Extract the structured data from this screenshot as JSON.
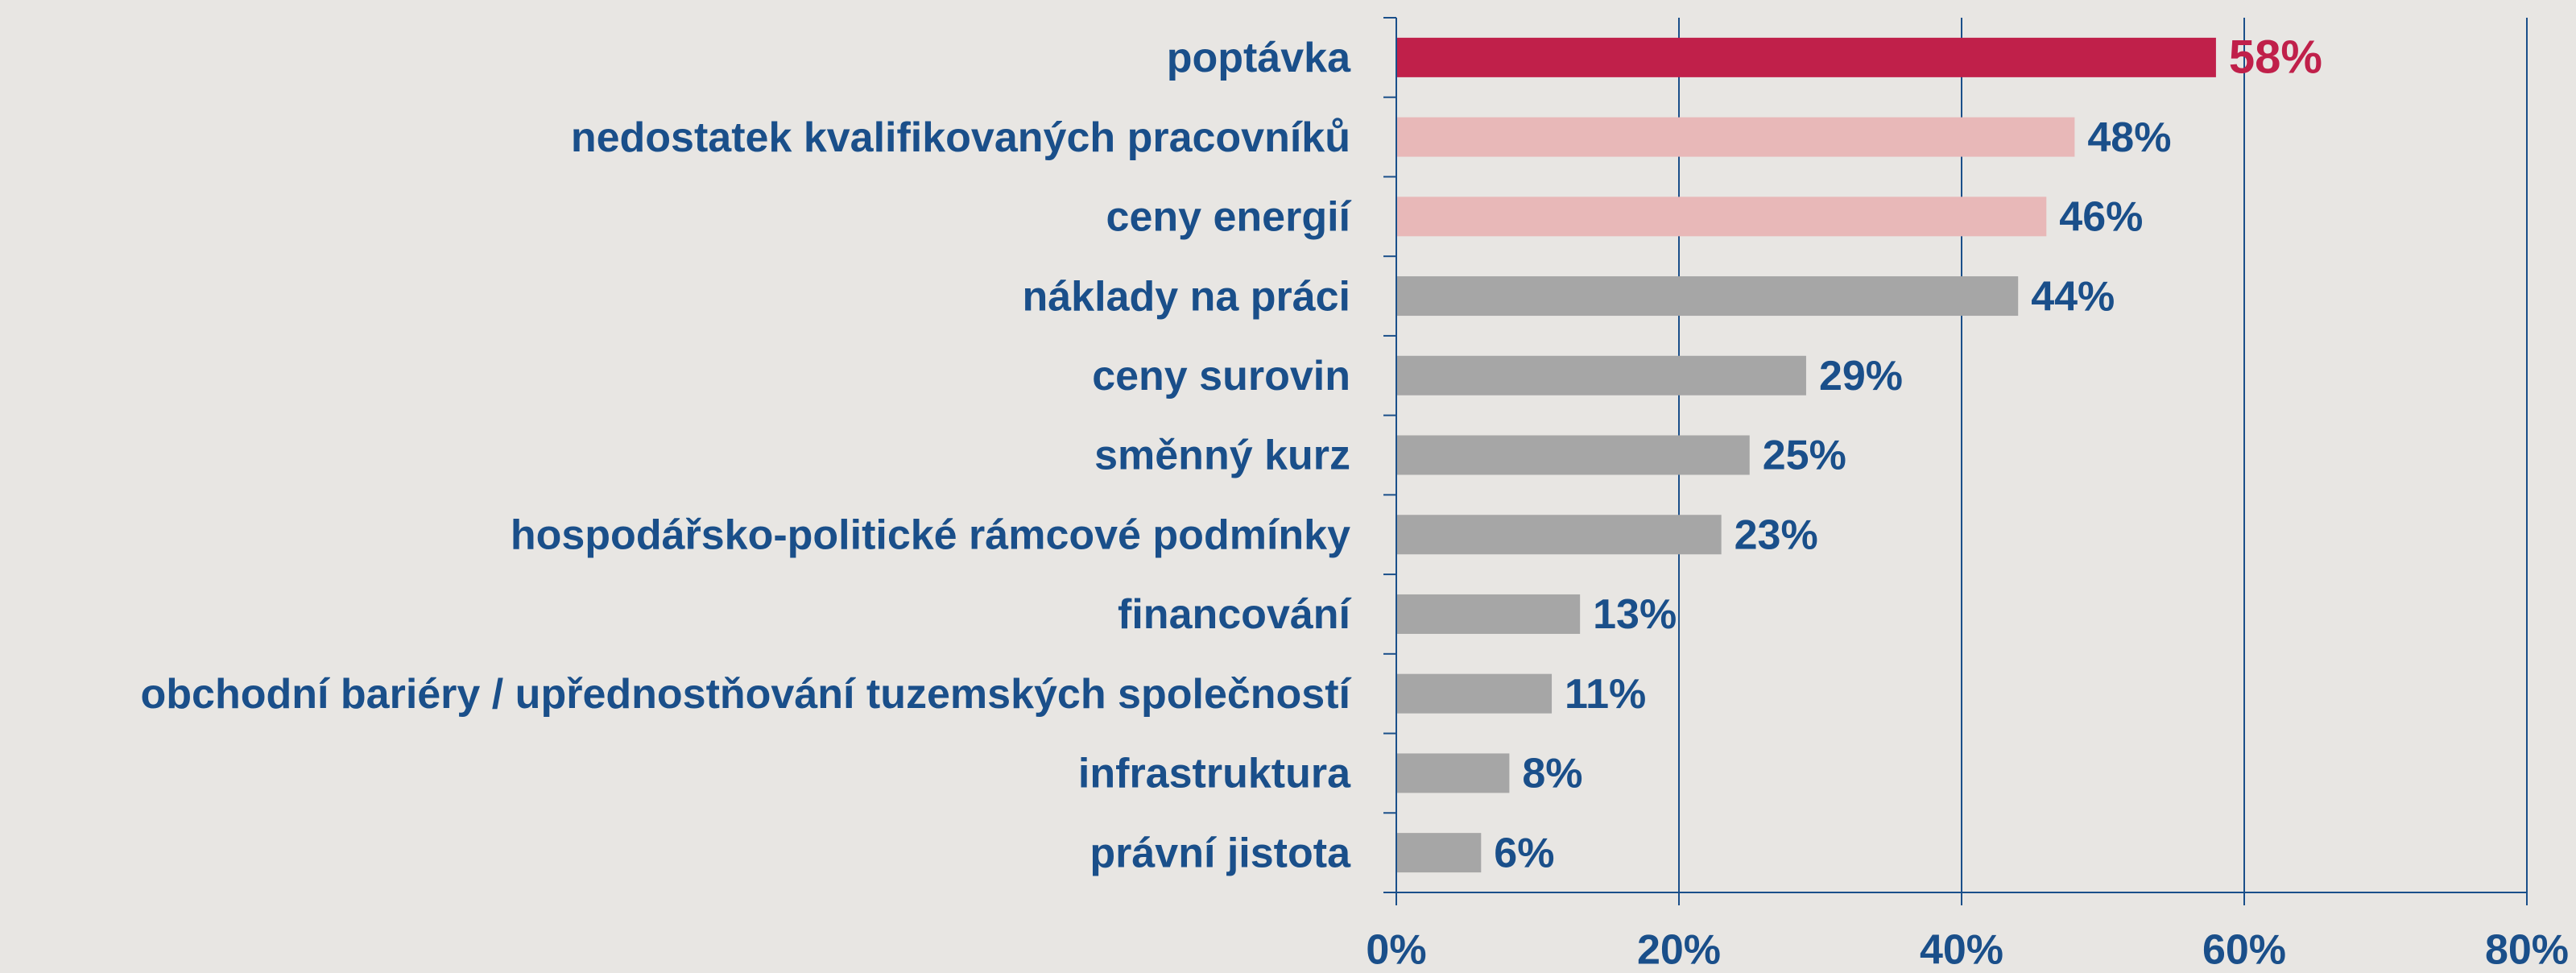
{
  "chart_data": {
    "type": "bar",
    "orientation": "horizontal",
    "categories": [
      "poptávka",
      "nedostatek kvalifikovaných pracovníků",
      "ceny energií",
      "náklady na práci",
      "ceny surovin",
      "směnný kurz",
      "hospodářsko-politické rámcové podmínky",
      "financování",
      "obchodní bariéry / upřednostňování tuzemských společností",
      "infrastruktura",
      "právní jistota"
    ],
    "values": [
      58,
      48,
      46,
      44,
      29,
      25,
      23,
      13,
      11,
      8,
      6
    ],
    "value_labels": [
      "58%",
      "48%",
      "46%",
      "44%",
      "29%",
      "25%",
      "23%",
      "13%",
      "11%",
      "8%",
      "6%"
    ],
    "colors": [
      "#c0204a",
      "#e8b8b8",
      "#e8b8b8",
      "#a6a6a6",
      "#a6a6a6",
      "#a6a6a6",
      "#a6a6a6",
      "#a6a6a6",
      "#a6a6a6",
      "#a6a6a6",
      "#a6a6a6"
    ],
    "value_label_colors": [
      "#c0204a",
      "#1a4f8a",
      "#1a4f8a",
      "#1a4f8a",
      "#1a4f8a",
      "#1a4f8a",
      "#1a4f8a",
      "#1a4f8a",
      "#1a4f8a",
      "#1a4f8a",
      "#1a4f8a"
    ],
    "xlim": [
      0,
      80
    ],
    "xticks": [
      {
        "value": 0,
        "label": "0%"
      },
      {
        "value": 20,
        "label": "20%"
      },
      {
        "value": 40,
        "label": "40%"
      },
      {
        "value": 60,
        "label": "60%"
      },
      {
        "value": 80,
        "label": "80%"
      }
    ],
    "grid": true
  }
}
